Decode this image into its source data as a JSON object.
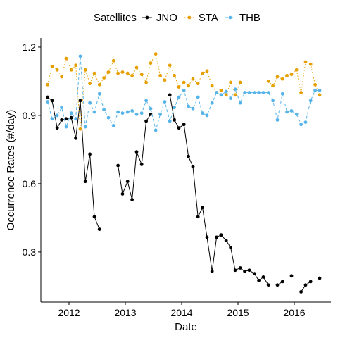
{
  "chart_data": {
    "type": "line",
    "xlabel": "Date",
    "ylabel": "Occurrence Rates (#/day)",
    "xlim": [
      2011.5,
      2016.65
    ],
    "ylim": [
      0.08,
      1.24
    ],
    "x_ticks": [
      2012,
      2013,
      2014,
      2015,
      2016
    ],
    "x_tick_labels": [
      "2012",
      "2013",
      "2014",
      "2015",
      "2016"
    ],
    "y_ticks": [
      0.3,
      0.6,
      0.9,
      1.2
    ],
    "y_tick_labels": [
      "0.3",
      "0.6",
      "0.9",
      "1.2"
    ],
    "grid": false,
    "legend": {
      "title": "Satellites",
      "position": "top"
    },
    "series": [
      {
        "name": "JNO",
        "color": "#000000",
        "dash": "solid",
        "points": [
          [
            2011.62,
            0.98
          ],
          [
            2011.7,
            0.965
          ],
          [
            2011.79,
            0.845
          ],
          [
            2011.87,
            0.88
          ],
          [
            2011.95,
            0.885
          ],
          [
            2012.04,
            0.89
          ],
          [
            2012.12,
            0.8
          ],
          [
            2012.2,
            0.965
          ],
          [
            2012.29,
            0.61
          ],
          [
            2012.37,
            0.73
          ],
          [
            2012.45,
            0.455
          ],
          [
            2012.54,
            0.4
          ],
          null,
          [
            2012.87,
            0.68
          ],
          [
            2012.95,
            0.555
          ],
          [
            2013.04,
            0.61
          ],
          [
            2013.12,
            0.53
          ],
          [
            2013.2,
            0.74
          ],
          [
            2013.29,
            0.685
          ],
          [
            2013.37,
            0.875
          ],
          [
            2013.45,
            0.905
          ],
          null,
          [
            2013.79,
            0.99
          ],
          [
            2013.87,
            0.88
          ],
          [
            2013.95,
            0.845
          ],
          [
            2014.04,
            0.86
          ],
          [
            2014.12,
            0.72
          ],
          [
            2014.2,
            0.675
          ],
          [
            2014.29,
            0.455
          ],
          [
            2014.37,
            0.495
          ],
          [
            2014.45,
            0.365
          ],
          [
            2014.54,
            0.215
          ],
          [
            2014.62,
            0.365
          ],
          [
            2014.7,
            0.375
          ],
          [
            2014.79,
            0.35
          ],
          [
            2014.87,
            0.32
          ],
          [
            2014.95,
            0.22
          ],
          [
            2015.04,
            0.23
          ],
          [
            2015.12,
            0.215
          ],
          [
            2015.2,
            0.22
          ],
          [
            2015.29,
            0.205
          ],
          [
            2015.37,
            0.175
          ],
          [
            2015.45,
            0.19
          ],
          [
            2015.54,
            0.155
          ],
          null,
          [
            2015.7,
            0.155
          ],
          [
            2015.79,
            0.17
          ],
          null,
          [
            2015.95,
            0.195
          ],
          null,
          [
            2016.12,
            0.125
          ],
          [
            2016.2,
            0.155
          ],
          [
            2016.29,
            0.17
          ],
          null,
          [
            2016.45,
            0.185
          ]
        ]
      },
      {
        "name": "STA",
        "color": "#E69F00",
        "dash": "dotted",
        "points": [
          [
            2011.62,
            1.035
          ],
          [
            2011.7,
            1.115
          ],
          [
            2011.79,
            1.1
          ],
          [
            2011.87,
            1.07
          ],
          [
            2011.95,
            1.15
          ],
          [
            2012.04,
            1.1
          ],
          [
            2012.12,
            1.12
          ],
          [
            2012.2,
            0.84
          ],
          [
            2012.29,
            1.1
          ],
          [
            2012.37,
            1.04
          ],
          [
            2012.45,
            1.085
          ],
          [
            2012.54,
            1.035
          ],
          [
            2012.62,
            1.065
          ],
          [
            2012.7,
            1.09
          ],
          [
            2012.79,
            1.14
          ],
          [
            2012.87,
            1.085
          ],
          [
            2012.95,
            1.09
          ],
          [
            2013.04,
            1.085
          ],
          [
            2013.12,
            1.075
          ],
          [
            2013.2,
            1.11
          ],
          [
            2013.29,
            1.08
          ],
          [
            2013.37,
            1.045
          ],
          [
            2013.45,
            1.13
          ],
          [
            2013.54,
            1.17
          ],
          [
            2013.62,
            1.075
          ],
          [
            2013.7,
            1.055
          ],
          [
            2013.79,
            1.12
          ],
          [
            2013.87,
            1.075
          ],
          [
            2013.95,
            1.025
          ],
          [
            2014.04,
            1.045
          ],
          [
            2014.12,
            1.03
          ],
          [
            2014.2,
            1.06
          ],
          [
            2014.29,
            1.04
          ],
          [
            2014.37,
            1.085
          ],
          [
            2014.45,
            1.095
          ],
          [
            2014.54,
            1.03
          ],
          [
            2014.62,
            1.0
          ],
          [
            2014.7,
            1.01
          ],
          [
            2014.79,
            0.99
          ],
          [
            2014.87,
            1.045
          ],
          [
            2014.95,
            0.99
          ],
          [
            2015.04,
            1.045
          ],
          null,
          [
            2015.54,
            1.05
          ],
          [
            2015.62,
            1.03
          ],
          [
            2015.7,
            1.07
          ],
          [
            2015.79,
            1.06
          ],
          [
            2015.87,
            1.075
          ],
          [
            2015.95,
            1.08
          ],
          [
            2016.04,
            1.1
          ],
          [
            2016.12,
            1.0
          ],
          [
            2016.2,
            1.135
          ],
          [
            2016.29,
            1.125
          ],
          [
            2016.37,
            1.035
          ],
          [
            2016.45,
            0.99
          ]
        ]
      },
      {
        "name": "THB",
        "color": "#56B4E9",
        "dash": "dashed",
        "points": [
          [
            2011.62,
            0.96
          ],
          [
            2011.7,
            0.885
          ],
          [
            2011.79,
            0.9
          ],
          [
            2011.87,
            0.935
          ],
          [
            2011.95,
            0.85
          ],
          [
            2012.04,
            0.91
          ],
          [
            2012.12,
            0.885
          ],
          [
            2012.2,
            1.16
          ],
          [
            2012.29,
            0.85
          ],
          [
            2012.37,
            0.955
          ],
          [
            2012.45,
            0.915
          ],
          [
            2012.54,
            0.995
          ],
          [
            2012.62,
            0.925
          ],
          [
            2012.7,
            0.89
          ],
          [
            2012.79,
            0.855
          ],
          [
            2012.87,
            0.915
          ],
          [
            2012.95,
            0.91
          ],
          [
            2013.04,
            0.915
          ],
          [
            2013.12,
            0.92
          ],
          [
            2013.2,
            0.905
          ],
          [
            2013.29,
            0.91
          ],
          [
            2013.37,
            0.965
          ],
          [
            2013.45,
            0.93
          ],
          [
            2013.54,
            0.835
          ],
          [
            2013.62,
            0.905
          ],
          [
            2013.7,
            0.96
          ],
          [
            2013.79,
            0.875
          ],
          [
            2013.87,
            0.935
          ],
          [
            2013.95,
            0.98
          ],
          [
            2014.04,
            1.01
          ],
          [
            2014.12,
            0.94
          ],
          [
            2014.2,
            0.93
          ],
          [
            2014.29,
            0.98
          ],
          [
            2014.37,
            0.91
          ],
          [
            2014.45,
            0.9
          ],
          [
            2014.54,
            0.955
          ],
          [
            2014.62,
            1.0
          ],
          [
            2014.7,
            0.99
          ],
          [
            2014.79,
            1.005
          ],
          [
            2014.87,
            0.975
          ],
          [
            2014.95,
            1.015
          ],
          [
            2015.04,
            0.955
          ],
          [
            2015.12,
            1.0
          ],
          [
            2015.2,
            1.0
          ],
          [
            2015.29,
            1.0
          ],
          [
            2015.37,
            1.0
          ],
          [
            2015.45,
            1.0
          ],
          [
            2015.54,
            1.0
          ],
          [
            2015.62,
            0.965
          ],
          [
            2015.7,
            0.88
          ],
          [
            2015.79,
            0.995
          ],
          [
            2015.87,
            0.915
          ],
          [
            2015.95,
            0.92
          ],
          [
            2016.04,
            0.905
          ],
          [
            2016.12,
            0.86
          ],
          [
            2016.2,
            0.87
          ],
          [
            2016.29,
            0.965
          ],
          [
            2016.37,
            1.01
          ],
          [
            2016.45,
            1.01
          ]
        ]
      }
    ]
  }
}
